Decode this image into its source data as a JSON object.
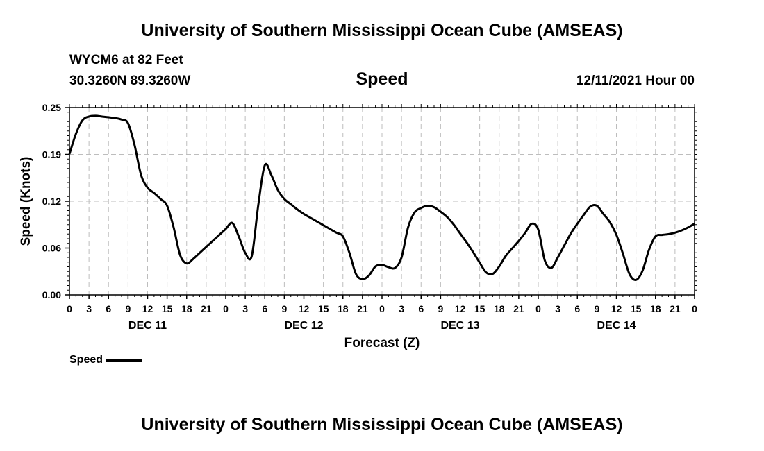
{
  "header": {
    "title": "University of Southern Mississippi Ocean Cube (AMSEAS)",
    "station": "WYCM6 at 82 Feet",
    "coords": "30.3260N  89.3260W",
    "variable": "Speed",
    "datetime": "12/11/2021 Hour 00"
  },
  "footer": {
    "title": "University of Southern Mississippi Ocean Cube (AMSEAS)"
  },
  "legend": {
    "label": "Speed",
    "color": "#000000"
  },
  "chart_data": {
    "type": "line",
    "title": "Speed",
    "xlabel": "Forecast (Z)",
    "ylabel": "Speed (Knots)",
    "xlim": [
      0,
      96
    ],
    "ylim": [
      0,
      0.25
    ],
    "grid": true,
    "legend_position": "bottom-left",
    "y_ticks": [
      {
        "value": 0,
        "label": "0.00"
      },
      {
        "value": 0.0625,
        "label": "0.06"
      },
      {
        "value": 0.125,
        "label": "0.12"
      },
      {
        "value": 0.1875,
        "label": "0.19"
      },
      {
        "value": 0.25,
        "label": "0.25"
      }
    ],
    "x_ticks": [
      {
        "value": 0,
        "label": "0"
      },
      {
        "value": 3,
        "label": "3"
      },
      {
        "value": 6,
        "label": "6"
      },
      {
        "value": 9,
        "label": "9"
      },
      {
        "value": 12,
        "label": "12"
      },
      {
        "value": 15,
        "label": "15"
      },
      {
        "value": 18,
        "label": "18"
      },
      {
        "value": 21,
        "label": "21"
      },
      {
        "value": 24,
        "label": "0"
      },
      {
        "value": 27,
        "label": "3"
      },
      {
        "value": 30,
        "label": "6"
      },
      {
        "value": 33,
        "label": "9"
      },
      {
        "value": 36,
        "label": "12"
      },
      {
        "value": 39,
        "label": "15"
      },
      {
        "value": 42,
        "label": "18"
      },
      {
        "value": 45,
        "label": "21"
      },
      {
        "value": 48,
        "label": "0"
      },
      {
        "value": 51,
        "label": "3"
      },
      {
        "value": 54,
        "label": "6"
      },
      {
        "value": 57,
        "label": "9"
      },
      {
        "value": 60,
        "label": "12"
      },
      {
        "value": 63,
        "label": "15"
      },
      {
        "value": 66,
        "label": "18"
      },
      {
        "value": 69,
        "label": "21"
      },
      {
        "value": 72,
        "label": "0"
      },
      {
        "value": 75,
        "label": "3"
      },
      {
        "value": 78,
        "label": "6"
      },
      {
        "value": 81,
        "label": "9"
      },
      {
        "value": 84,
        "label": "12"
      },
      {
        "value": 87,
        "label": "15"
      },
      {
        "value": 90,
        "label": "18"
      },
      {
        "value": 93,
        "label": "21"
      },
      {
        "value": 96,
        "label": "0"
      }
    ],
    "day_labels": [
      {
        "value": 12,
        "label": "DEC 11"
      },
      {
        "value": 36,
        "label": "DEC 12"
      },
      {
        "value": 60,
        "label": "DEC 13"
      },
      {
        "value": 84,
        "label": "DEC 14"
      }
    ],
    "series": [
      {
        "name": "Speed",
        "x": [
          0,
          1,
          2,
          3,
          4,
          5,
          6,
          7,
          8,
          9,
          10,
          11,
          12,
          13,
          14,
          15,
          16,
          17,
          18,
          19,
          20,
          21,
          22,
          23,
          24,
          25,
          26,
          27,
          28,
          29,
          30,
          31,
          32,
          33,
          34,
          35,
          36,
          37,
          38,
          39,
          40,
          41,
          42,
          43,
          44,
          45,
          46,
          47,
          48,
          49,
          50,
          51,
          52,
          53,
          54,
          55,
          56,
          57,
          58,
          59,
          60,
          61,
          62,
          63,
          64,
          65,
          66,
          67,
          68,
          69,
          70,
          71,
          72,
          73,
          74,
          75,
          76,
          77,
          78,
          79,
          80,
          81,
          82,
          83,
          84,
          85,
          86,
          87,
          88,
          89,
          90,
          91,
          92,
          93,
          94,
          95,
          96
        ],
        "values": [
          0.188,
          0.215,
          0.233,
          0.238,
          0.239,
          0.238,
          0.237,
          0.236,
          0.234,
          0.229,
          0.2,
          0.16,
          0.143,
          0.136,
          0.128,
          0.119,
          0.09,
          0.053,
          0.042,
          0.048,
          0.056,
          0.064,
          0.072,
          0.08,
          0.088,
          0.096,
          0.078,
          0.056,
          0.052,
          0.12,
          0.173,
          0.16,
          0.14,
          0.128,
          0.121,
          0.114,
          0.108,
          0.103,
          0.098,
          0.093,
          0.088,
          0.083,
          0.078,
          0.056,
          0.028,
          0.021,
          0.026,
          0.038,
          0.04,
          0.037,
          0.036,
          0.05,
          0.09,
          0.11,
          0.116,
          0.119,
          0.117,
          0.111,
          0.104,
          0.094,
          0.082,
          0.07,
          0.057,
          0.043,
          0.03,
          0.028,
          0.038,
          0.052,
          0.062,
          0.072,
          0.083,
          0.095,
          0.087,
          0.046,
          0.036,
          0.05,
          0.066,
          0.082,
          0.095,
          0.107,
          0.118,
          0.119,
          0.108,
          0.097,
          0.08,
          0.055,
          0.028,
          0.02,
          0.032,
          0.06,
          0.078,
          0.08,
          0.081,
          0.083,
          0.086,
          0.09,
          0.095
        ]
      }
    ]
  }
}
